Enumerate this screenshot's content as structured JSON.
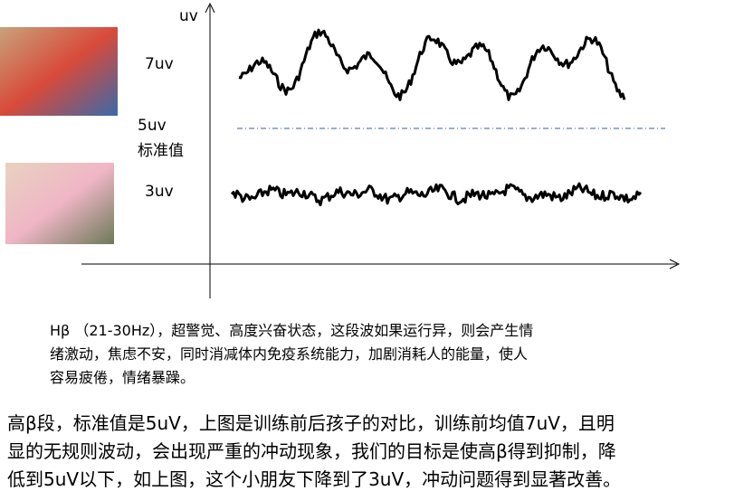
{
  "diagram": {
    "axis_label": "uv",
    "level_high": "7uv",
    "level_standard": "5uv",
    "level_standard_name": "标准值",
    "level_low": "3uv",
    "description": [
      "Hβ （21-30Hz），超警觉、高度兴奋状态，这段波如果运行异，则会产生情",
      "绪激动，焦虑不安，同时消减体内免疫系统能力，加剧消耗人的能量，使人",
      "容易疲倦，情绪暴躁。"
    ],
    "summary": [
      "高β段，标准值是5uV，上图是训练前后孩子的对比，训练前均值7uV，且明",
      "显的无规则波动，会出现严重的冲动现象，我们的目标是使高β得到抑制，降",
      "低到5uV以下，如上图，这个小朋友下降到了3uV，冲动问题得到显著改善。"
    ]
  }
}
